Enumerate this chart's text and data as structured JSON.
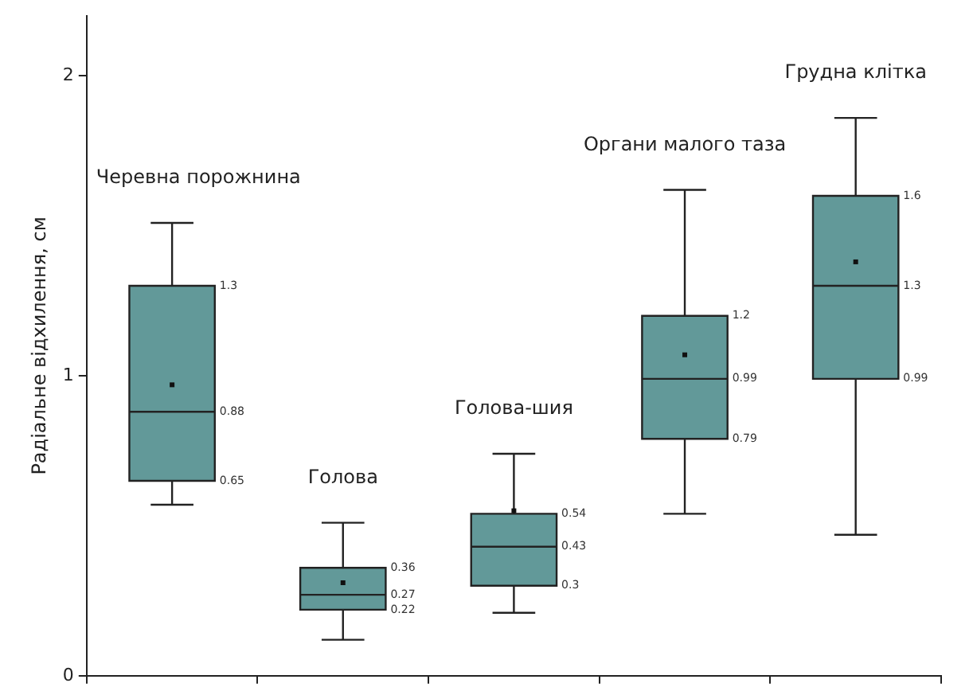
{
  "chart_data": {
    "type": "box",
    "ylabel": "Радіальне відхилення, см",
    "categories": [
      "Черевна порожнина",
      "Голова",
      "Голова-шия",
      "Органи малого таза",
      "Грудна клітка"
    ],
    "boxes": [
      {
        "low": 0.57,
        "q1": 0.65,
        "median": 0.88,
        "q3": 1.3,
        "high": 1.51,
        "mean": 0.97
      },
      {
        "low": 0.12,
        "q1": 0.22,
        "median": 0.27,
        "q3": 0.36,
        "high": 0.51,
        "mean": 0.31
      },
      {
        "low": 0.21,
        "q1": 0.3,
        "median": 0.43,
        "q3": 0.54,
        "high": 0.74,
        "mean": 0.55
      },
      {
        "low": 0.54,
        "q1": 0.79,
        "median": 0.99,
        "q3": 1.2,
        "high": 1.62,
        "mean": 1.07
      },
      {
        "low": 0.47,
        "q1": 0.99,
        "median": 1.3,
        "q3": 1.6,
        "high": 1.86,
        "mean": 1.38
      }
    ],
    "value_labels": [
      [
        "0.65",
        "0.88",
        "1.3"
      ],
      [
        "0.22",
        "0.27",
        "0.36"
      ],
      [
        "0.3",
        "0.43",
        "0.54"
      ],
      [
        "0.79",
        "0.99",
        "1.2"
      ],
      [
        "0.99",
        "1.3",
        "1.6"
      ]
    ],
    "color": "#629999",
    "ylim": [
      0,
      2.2
    ],
    "yticks": [
      0,
      1,
      2
    ],
    "grid": false,
    "legend": false,
    "data_labels": true,
    "tick_labels": "y"
  }
}
